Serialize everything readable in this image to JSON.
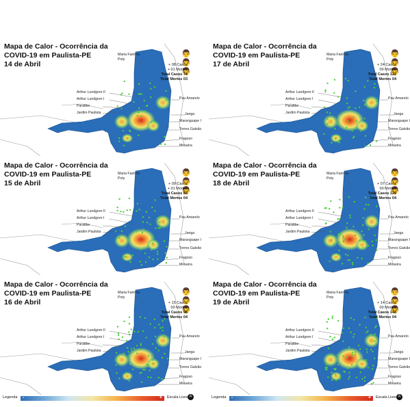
{
  "panels": [
    {
      "title": "Mapa de Calor - Ocorrência da COVID-19 em Paulista-PE",
      "date": "14 de Abril",
      "new_cases": "+ 08 Casos",
      "new_deaths": "+ 01 Mortes",
      "total_cases": "Total Casos 74",
      "total_deaths": "Total Mortes 03"
    },
    {
      "title": "Mapa de Calor - Ocorrência da COVID-19 em Paulista-PE",
      "date": "17 de Abril",
      "new_cases": "+ 24 Casos",
      "new_deaths": "00 Mortes",
      "total_cases": "Total Casos 122",
      "total_deaths": "Total Mortes 04"
    },
    {
      "title": "Mapa de Calor - Ocorrência da COVID-19 em Paulista-PE",
      "date": "15 de Abril",
      "new_cases": "+ 09 Casos",
      "new_deaths": "+ 01 Mortes",
      "total_cases": "Total Casos 83",
      "total_deaths": "Total Mortes 04"
    },
    {
      "title": "Mapa de Calor - Ocorrência da COVID-19 em Paulista-PE",
      "date": "18 de Abril",
      "new_cases": "+ 07 Casos",
      "new_deaths": "00 Mortes",
      "total_cases": "Total Casos 129",
      "total_deaths": "Total Mortes 04"
    },
    {
      "title": "Mapa de Calor - Ocorrência da COVID-19 em Paulista-PE",
      "date": "16 de Abril",
      "new_cases": "+ 15 Casos",
      "new_deaths": "00 Mortes",
      "total_cases": "Total Casos 98",
      "total_deaths": "Total Mortes 04"
    },
    {
      "title": "Mapa de Calor - Ocorrência da COVID-19 em Paulista-PE",
      "date": "19 de Abril",
      "new_cases": "+ 14 Casos",
      "new_deaths": "00 Mortes",
      "total_cases": "Total Casos 143",
      "total_deaths": "Total Mortes 04"
    }
  ],
  "places": {
    "maria_farinha": "Maria Farinha",
    "poty": "Poty",
    "arthur2": "Arthur Lundgren II",
    "arthur1": "Arthur Lundgren I",
    "paratibe": "Paratibe",
    "jardim": "Jardim Paulista",
    "pau_amarelo": "Pau Amarelo",
    "janga": "Janga",
    "maranguape": "Maranguape I",
    "torres": "Torres Galvão",
    "fragoso": "Fragoso",
    "mirueira": "Mirueira"
  },
  "legend": {
    "label": "Legenda",
    "minus": "-",
    "plus": "+",
    "scale": "Escala Livre",
    "north": "A"
  },
  "people_icon": "people-icon",
  "colors": {
    "map_blue": "#2a6db8",
    "hot_red": "#d52a1d",
    "hot_yellow": "#f5d34c",
    "case_green": "#4cd13a"
  }
}
